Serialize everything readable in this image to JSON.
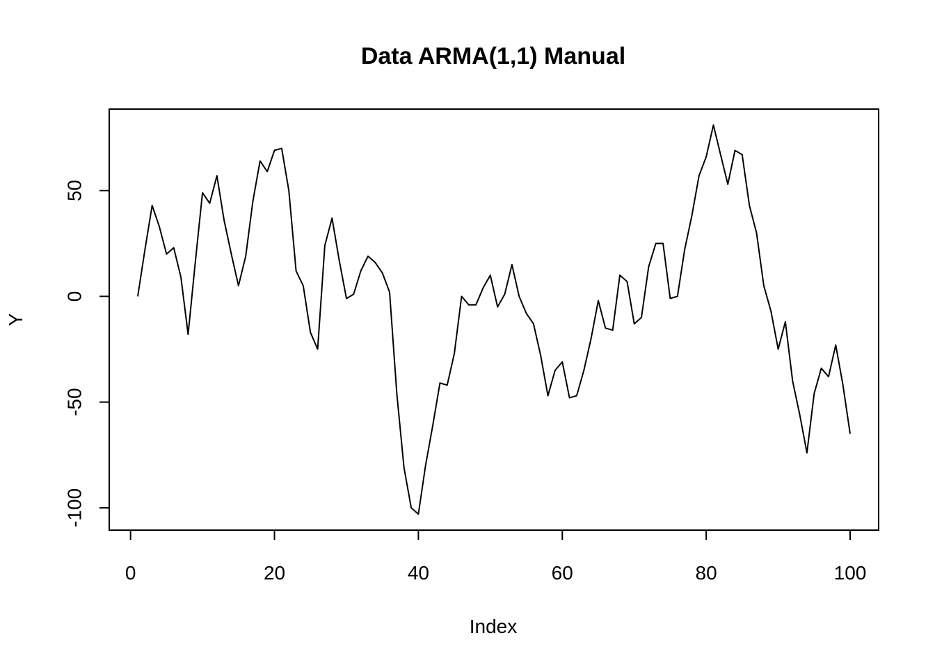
{
  "chart_data": {
    "type": "line",
    "title": "Data ARMA(1,1) Manual",
    "xlabel": "Index",
    "ylabel": "Y",
    "xlim": [
      1,
      100
    ],
    "ylim": [
      -103,
      81
    ],
    "x_ticks": [
      0,
      20,
      40,
      60,
      80,
      100
    ],
    "y_ticks": [
      -100,
      -50,
      0,
      50
    ],
    "grid": false,
    "legend": "none",
    "line_color": "#000000",
    "series": [
      {
        "x": [
          1,
          2,
          3,
          4,
          5,
          6,
          7,
          8,
          9,
          10,
          11,
          12,
          13,
          14,
          15,
          16,
          17,
          18,
          19,
          20,
          21,
          22,
          23,
          24,
          25,
          26,
          27,
          28,
          29,
          30,
          31,
          32,
          33,
          34,
          35,
          36,
          37,
          38,
          39,
          40,
          41,
          42,
          43,
          44,
          45,
          46,
          47,
          48,
          49,
          50,
          51,
          52,
          53,
          54,
          55,
          56,
          57,
          58,
          59,
          60,
          61,
          62,
          63,
          64,
          65,
          66,
          67,
          68,
          69,
          70,
          71,
          72,
          73,
          74,
          75,
          76,
          77,
          78,
          79,
          80,
          81,
          82,
          83,
          84,
          85,
          86,
          87,
          88,
          89,
          90,
          91,
          92,
          93,
          94,
          95,
          96,
          97,
          98,
          99,
          100
        ],
        "values": [
          0,
          22,
          43,
          33,
          20,
          23,
          9,
          -18,
          16,
          49,
          44,
          57,
          36,
          20,
          5,
          19,
          45,
          64,
          59,
          69,
          70,
          50,
          12,
          5,
          -17,
          -25,
          24,
          37,
          17,
          -1,
          1,
          12,
          19,
          16,
          11,
          2,
          -46,
          -81,
          -100,
          -103,
          -80,
          -61,
          -41,
          -42,
          -27,
          0,
          -4,
          -4,
          4,
          10,
          -5,
          1,
          15,
          0,
          -8,
          -13,
          -28,
          -47,
          -35,
          -31,
          -48,
          -47,
          -35,
          -20,
          -2,
          -15,
          -16,
          10,
          7,
          -13,
          -10,
          14,
          25,
          25,
          -1,
          0,
          22,
          38,
          57,
          66,
          81,
          67,
          53,
          69,
          67,
          43,
          30,
          5,
          -7,
          -25,
          -12,
          -40,
          -56,
          -74,
          -46,
          -34,
          -38,
          -23,
          -42,
          -65
        ]
      }
    ]
  }
}
